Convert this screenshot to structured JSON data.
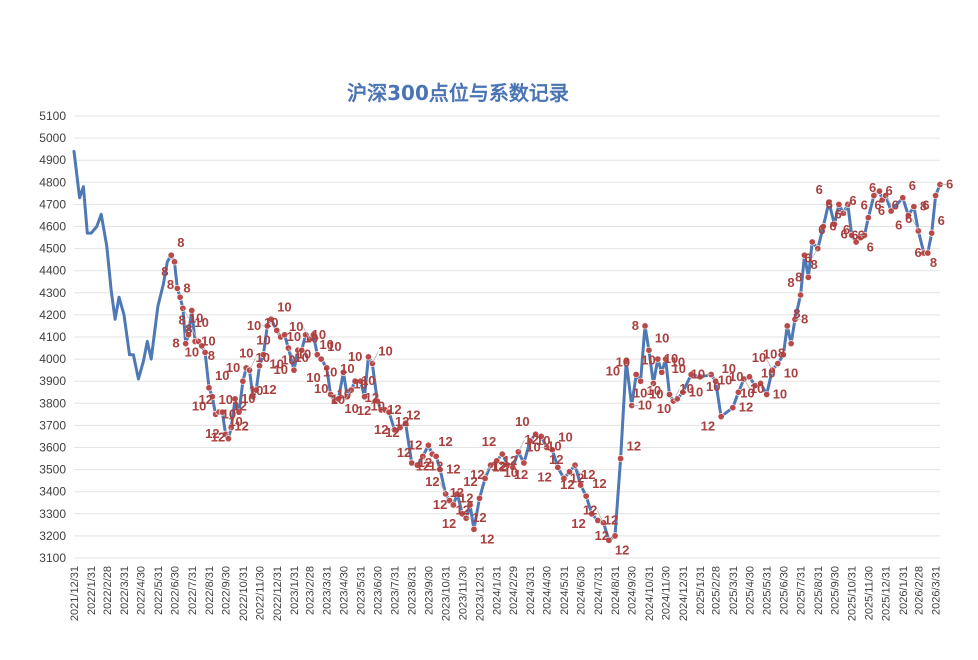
{
  "chart_data": {
    "type": "line",
    "title": "沪深300点位与系数记录",
    "xlabel": "",
    "ylabel": "",
    "ylim": [
      3100,
      5100
    ],
    "yticks": [
      3100,
      3200,
      3300,
      3400,
      3500,
      3600,
      3700,
      3800,
      3900,
      4000,
      4100,
      4200,
      4300,
      4400,
      4500,
      4600,
      4700,
      4800,
      4900,
      5000,
      5100
    ],
    "grid": true,
    "legend": "none",
    "x_tick_labels": [
      "2021/12/31",
      "2022/1/31",
      "2022/2/28",
      "2022/3/31",
      "2022/4/30",
      "2022/5/31",
      "2022/6/30",
      "2022/7/31",
      "2022/8/31",
      "2022/9/30",
      "2022/10/31",
      "2022/11/30",
      "2022/12/31",
      "2023/1/31",
      "2023/2/28",
      "2023/3/31",
      "2023/4/30",
      "2023/5/31",
      "2023/6/30",
      "2023/7/31",
      "2023/8/31",
      "2023/9/30",
      "2023/10/31",
      "2023/11/30",
      "2023/12/31",
      "2024/1/31",
      "2024/2/29",
      "2024/3/31",
      "2024/4/30",
      "2024/5/31",
      "2024/6/30",
      "2024/7/31",
      "2024/8/31",
      "2024/9/30",
      "2024/10/31",
      "2024/11/30",
      "2024/12/31",
      "2025/1/31",
      "2025/2/28",
      "2025/3/31",
      "2025/4/30",
      "2025/5/31",
      "2025/6/30",
      "2025/7/31",
      "2025/8/31",
      "2025/9/30",
      "2025/10/31",
      "2025/11/30",
      "2025/12/31",
      "2026/1/31",
      "2026/2/28",
      "2026/3/31"
    ],
    "series": [
      {
        "color": "#4f79b5",
        "marker_color": "#b94a4a",
        "points": [
          {
            "x": "2021/12/31",
            "y": 4940
          },
          {
            "x": "2022/1/10",
            "y": 4730
          },
          {
            "x": "2022/1/17",
            "y": 4780
          },
          {
            "x": "2022/1/24",
            "y": 4570
          },
          {
            "x": "2022/1/31",
            "y": 4570
          },
          {
            "x": "2022/2/10",
            "y": 4600
          },
          {
            "x": "2022/2/18",
            "y": 4655
          },
          {
            "x": "2022/2/28",
            "y": 4510
          },
          {
            "x": "2022/3/8",
            "y": 4310
          },
          {
            "x": "2022/3/15",
            "y": 4180
          },
          {
            "x": "2022/3/22",
            "y": 4280
          },
          {
            "x": "2022/3/31",
            "y": 4200
          },
          {
            "x": "2022/4/10",
            "y": 4020
          },
          {
            "x": "2022/4/17",
            "y": 4020
          },
          {
            "x": "2022/4/26",
            "y": 3910
          },
          {
            "x": "2022/5/5",
            "y": 3990
          },
          {
            "x": "2022/5/12",
            "y": 4080
          },
          {
            "x": "2022/5/19",
            "y": 4000
          },
          {
            "x": "2022/5/31",
            "y": 4240
          },
          {
            "x": "2022/6/10",
            "y": 4340
          },
          {
            "x": "2022/6/17",
            "y": 4440
          },
          {
            "x": "2022/6/24",
            "y": 4470,
            "c": "8"
          },
          {
            "x": "2022/6/30",
            "y": 4440,
            "c": "8"
          },
          {
            "x": "2022/7/5",
            "y": 4320,
            "c": "8"
          },
          {
            "x": "2022/7/10",
            "y": 4280,
            "c": "8"
          },
          {
            "x": "2022/7/15",
            "y": 4230,
            "c": "10"
          },
          {
            "x": "2022/7/20",
            "y": 4070,
            "c": "8"
          },
          {
            "x": "2022/7/25",
            "y": 4110,
            "c": "10"
          },
          {
            "x": "2022/7/31",
            "y": 4220,
            "c": "8"
          },
          {
            "x": "2022/8/6",
            "y": 4080,
            "c": "10"
          },
          {
            "x": "2022/8/12",
            "y": 4080,
            "c": "8"
          },
          {
            "x": "2022/8/18",
            "y": 4060,
            "c": "8"
          },
          {
            "x": "2022/8/24",
            "y": 4030,
            "c": "10"
          },
          {
            "x": "2022/8/31",
            "y": 3870,
            "c": "10"
          },
          {
            "x": "2022/9/6",
            "y": 3830,
            "c": "10"
          },
          {
            "x": "2022/9/12",
            "y": 3750,
            "c": "10"
          },
          {
            "x": "2022/9/18",
            "y": 3760,
            "c": "12"
          },
          {
            "x": "2022/9/24",
            "y": 3760,
            "c": "10"
          },
          {
            "x": "2022/9/30",
            "y": 3660,
            "c": "12"
          },
          {
            "x": "2022/10/5",
            "y": 3640,
            "c": "12"
          },
          {
            "x": "2022/10/10",
            "y": 3690,
            "c": "12"
          },
          {
            "x": "2022/10/17",
            "y": 3820,
            "c": "10"
          },
          {
            "x": "2022/10/24",
            "y": 3760,
            "c": "10"
          },
          {
            "x": "2022/10/31",
            "y": 3900,
            "c": "10"
          },
          {
            "x": "2022/11/6",
            "y": 3960,
            "c": "10"
          },
          {
            "x": "2022/11/12",
            "y": 3950,
            "c": "10"
          },
          {
            "x": "2022/11/18",
            "y": 3830,
            "c": "12"
          },
          {
            "x": "2022/11/24",
            "y": 3860,
            "c": "12"
          },
          {
            "x": "2022/11/30",
            "y": 3970,
            "c": "10"
          },
          {
            "x": "2022/12/7",
            "y": 4020,
            "c": "10"
          },
          {
            "x": "2022/12/14",
            "y": 4150,
            "c": "10"
          },
          {
            "x": "2022/12/21",
            "y": 4180,
            "c": "10"
          },
          {
            "x": "2022/12/31",
            "y": 4130,
            "c": "10"
          },
          {
            "x": "2023/1/7",
            "y": 4100,
            "c": "10"
          },
          {
            "x": "2023/1/14",
            "y": 4110,
            "c": "10"
          },
          {
            "x": "2023/1/21",
            "y": 4050,
            "c": "10"
          },
          {
            "x": "2023/1/31",
            "y": 3950,
            "c": "10"
          },
          {
            "x": "2023/2/7",
            "y": 4040,
            "c": "10"
          },
          {
            "x": "2023/2/14",
            "y": 4040,
            "c": "10"
          },
          {
            "x": "2023/2/21",
            "y": 4110,
            "c": "10"
          },
          {
            "x": "2023/2/28",
            "y": 4090,
            "c": "10"
          },
          {
            "x": "2023/3/7",
            "y": 4110,
            "c": "10"
          },
          {
            "x": "2023/3/14",
            "y": 4020,
            "c": "10"
          },
          {
            "x": "2023/3/21",
            "y": 4000,
            "c": "10"
          },
          {
            "x": "2023/3/31",
            "y": 3960,
            "c": "10"
          },
          {
            "x": "2023/4/7",
            "y": 3840,
            "c": "10"
          },
          {
            "x": "2023/4/14",
            "y": 3810,
            "c": "10"
          },
          {
            "x": "2023/4/21",
            "y": 3820,
            "c": "10"
          },
          {
            "x": "2023/4/30",
            "y": 3940,
            "c": "10"
          },
          {
            "x": "2023/5/7",
            "y": 3830,
            "c": "10"
          },
          {
            "x": "2023/5/14",
            "y": 3860,
            "c": "10"
          },
          {
            "x": "2023/5/21",
            "y": 3900,
            "c": "10"
          },
          {
            "x": "2023/5/31",
            "y": 3900,
            "c": "10"
          },
          {
            "x": "2023/6/7",
            "y": 3830,
            "c": "10"
          },
          {
            "x": "2023/6/14",
            "y": 4010,
            "c": "10"
          },
          {
            "x": "2023/6/21",
            "y": 3980,
            "c": "10"
          },
          {
            "x": "2023/6/30",
            "y": 3810,
            "c": "12"
          },
          {
            "x": "2023/7/7",
            "y": 3770,
            "c": "12"
          },
          {
            "x": "2023/7/14",
            "y": 3770,
            "c": "12"
          },
          {
            "x": "2023/7/21",
            "y": 3760,
            "c": "12"
          },
          {
            "x": "2023/7/31",
            "y": 3680,
            "c": "12"
          },
          {
            "x": "2023/8/10",
            "y": 3690,
            "c": "12"
          },
          {
            "x": "2023/8/20",
            "y": 3710,
            "c": "12"
          },
          {
            "x": "2023/8/31",
            "y": 3530,
            "c": "12"
          },
          {
            "x": "2023/9/10",
            "y": 3520,
            "c": "12"
          },
          {
            "x": "2023/9/20",
            "y": 3560,
            "c": "12"
          },
          {
            "x": "2023/9/30",
            "y": 3610,
            "c": "12"
          },
          {
            "x": "2023/10/7",
            "y": 3570,
            "c": "12"
          },
          {
            "x": "2023/10/14",
            "y": 3560,
            "c": "12"
          },
          {
            "x": "2023/10/21",
            "y": 3500,
            "c": "12"
          },
          {
            "x": "2023/10/31",
            "y": 3390,
            "c": "12"
          },
          {
            "x": "2023/11/7",
            "y": 3360,
            "c": "12"
          },
          {
            "x": "2023/11/14",
            "y": 3340,
            "c": "12"
          },
          {
            "x": "2023/11/21",
            "y": 3390,
            "c": "12"
          },
          {
            "x": "2023/11/30",
            "y": 3300,
            "c": "12"
          },
          {
            "x": "2023/12/7",
            "y": 3280,
            "c": "12"
          },
          {
            "x": "2023/12/14",
            "y": 3340,
            "c": "12"
          },
          {
            "x": "2023/12/21",
            "y": 3230,
            "c": "12"
          },
          {
            "x": "2023/12/31",
            "y": 3370,
            "c": "12"
          },
          {
            "x": "2024/1/10",
            "y": 3460,
            "c": "12"
          },
          {
            "x": "2024/1/20",
            "y": 3520,
            "c": "12"
          },
          {
            "x": "2024/1/31",
            "y": 3540,
            "c": "12"
          },
          {
            "x": "2024/2/10",
            "y": 3570,
            "c": "12"
          },
          {
            "x": "2024/2/20",
            "y": 3520,
            "c": "12"
          },
          {
            "x": "2024/2/29",
            "y": 3510,
            "c": "12"
          },
          {
            "x": "2024/3/10",
            "y": 3580,
            "c": "12"
          },
          {
            "x": "2024/3/20",
            "y": 3530,
            "c": "10"
          },
          {
            "x": "2024/3/31",
            "y": 3630,
            "c": "10"
          },
          {
            "x": "2024/4/10",
            "y": 3660,
            "c": "10"
          },
          {
            "x": "2024/4/20",
            "y": 3650,
            "c": "10"
          },
          {
            "x": "2024/4/30",
            "y": 3600,
            "c": "10"
          },
          {
            "x": "2024/5/10",
            "y": 3590,
            "c": "10"
          },
          {
            "x": "2024/5/20",
            "y": 3510,
            "c": "12"
          },
          {
            "x": "2024/5/31",
            "y": 3460,
            "c": "12"
          },
          {
            "x": "2024/6/10",
            "y": 3490,
            "c": "12"
          },
          {
            "x": "2024/6/20",
            "y": 3520,
            "c": "12"
          },
          {
            "x": "2024/6/30",
            "y": 3430,
            "c": "12"
          },
          {
            "x": "2024/7/10",
            "y": 3380,
            "c": "12"
          },
          {
            "x": "2024/7/20",
            "y": 3300,
            "c": "12"
          },
          {
            "x": "2024/7/31",
            "y": 3270,
            "c": "12"
          },
          {
            "x": "2024/8/10",
            "y": 3260,
            "c": "12"
          },
          {
            "x": "2024/8/20",
            "y": 3180,
            "c": "12"
          },
          {
            "x": "2024/8/31",
            "y": 3200,
            "c": "12"
          },
          {
            "x": "2024/9/10",
            "y": 3550,
            "c": "12"
          },
          {
            "x": "2024/9/20",
            "y": 3990,
            "c": "10"
          },
          {
            "x": "2024/9/30",
            "y": 3790,
            "c": "10"
          },
          {
            "x": "2024/10/8",
            "y": 3930,
            "c": "10"
          },
          {
            "x": "2024/10/16",
            "y": 3900,
            "c": "10"
          },
          {
            "x": "2024/10/24",
            "y": 4150,
            "c": "8"
          },
          {
            "x": "2024/10/31",
            "y": 4040,
            "c": "10"
          },
          {
            "x": "2024/11/8",
            "y": 3890,
            "c": "10"
          },
          {
            "x": "2024/11/16",
            "y": 4000,
            "c": "10"
          },
          {
            "x": "2024/11/23",
            "y": 3940,
            "c": "10"
          },
          {
            "x": "2024/11/30",
            "y": 4000,
            "c": "10"
          },
          {
            "x": "2024/12/7",
            "y": 3840,
            "c": "10"
          },
          {
            "x": "2024/12/14",
            "y": 3810,
            "c": "10"
          },
          {
            "x": "2024/12/21",
            "y": 3820,
            "c": "10"
          },
          {
            "x": "2024/12/31",
            "y": 3850,
            "c": "10"
          },
          {
            "x": "2025/1/15",
            "y": 3930,
            "c": "10"
          },
          {
            "x": "2025/1/31",
            "y": 3920,
            "c": "10"
          },
          {
            "x": "2025/2/20",
            "y": 3930,
            "c": "10"
          },
          {
            "x": "2025/2/28",
            "y": 3900,
            "c": "10"
          },
          {
            "x": "2025/3/10",
            "y": 3740,
            "c": "12"
          },
          {
            "x": "2025/3/31",
            "y": 3780,
            "c": "12"
          },
          {
            "x": "2025/4/10",
            "y": 3850,
            "c": "10"
          },
          {
            "x": "2025/4/20",
            "y": 3910,
            "c": "10"
          },
          {
            "x": "2025/4/30",
            "y": 3920,
            "c": "10"
          },
          {
            "x": "2025/5/10",
            "y": 3880,
            "c": "10"
          },
          {
            "x": "2025/5/20",
            "y": 3890,
            "c": "10"
          },
          {
            "x": "2025/5/31",
            "y": 3840,
            "c": "10"
          },
          {
            "x": "2025/6/10",
            "y": 3950,
            "c": "10"
          },
          {
            "x": "2025/6/20",
            "y": 3980,
            "c": "10"
          },
          {
            "x": "2025/6/30",
            "y": 4020,
            "c": "10"
          },
          {
            "x": "2025/7/7",
            "y": 4150,
            "c": "8"
          },
          {
            "x": "2025/7/14",
            "y": 4070,
            "c": "8"
          },
          {
            "x": "2025/7/21",
            "y": 4180,
            "c": "8"
          },
          {
            "x": "2025/7/31",
            "y": 4290,
            "c": "8"
          },
          {
            "x": "2025/8/7",
            "y": 4470,
            "c": "8"
          },
          {
            "x": "2025/8/14",
            "y": 4370,
            "c": "8"
          },
          {
            "x": "2025/8/21",
            "y": 4530,
            "c": "6"
          },
          {
            "x": "2025/8/31",
            "y": 4500,
            "c": "6"
          },
          {
            "x": "2025/9/10",
            "y": 4600,
            "c": "6"
          },
          {
            "x": "2025/9/20",
            "y": 4710,
            "c": "6"
          },
          {
            "x": "2025/9/30",
            "y": 4610,
            "c": "6"
          },
          {
            "x": "2025/10/8",
            "y": 4700,
            "c": "6"
          },
          {
            "x": "2025/10/16",
            "y": 4660,
            "c": "6"
          },
          {
            "x": "2025/10/24",
            "y": 4700,
            "c": "6"
          },
          {
            "x": "2025/10/31",
            "y": 4560,
            "c": "6"
          },
          {
            "x": "2025/11/8",
            "y": 4530,
            "c": "6"
          },
          {
            "x": "2025/11/16",
            "y": 4550,
            "c": "6"
          },
          {
            "x": "2025/11/23",
            "y": 4560,
            "c": "6"
          },
          {
            "x": "2025/11/30",
            "y": 4640,
            "c": "6"
          },
          {
            "x": "2025/12/10",
            "y": 4740,
            "c": "6"
          },
          {
            "x": "2025/12/20",
            "y": 4760,
            "c": "6"
          },
          {
            "x": "2025/12/25",
            "y": 4720,
            "c": "6"
          },
          {
            "x": "2025/12/31",
            "y": 4740,
            "c": "6"
          },
          {
            "x": "2026/1/10",
            "y": 4670,
            "c": "6"
          },
          {
            "x": "2026/1/31",
            "y": 4730,
            "c": "6"
          },
          {
            "x": "2026/2/10",
            "y": 4650,
            "c": "6"
          },
          {
            "x": "2026/2/20",
            "y": 4690,
            "c": "8"
          },
          {
            "x": "2026/2/28",
            "y": 4580,
            "c": "6"
          },
          {
            "x": "2026/3/10",
            "y": 4480,
            "c": "8"
          },
          {
            "x": "2026/3/17",
            "y": 4480,
            "c": "6"
          },
          {
            "x": "2026/3/24",
            "y": 4570,
            "c": "6"
          },
          {
            "x": "2026/3/31",
            "y": 4740,
            "c": "6"
          },
          {
            "x": "2026/4/8",
            "y": 4790,
            "c": "6"
          }
        ]
      }
    ]
  }
}
